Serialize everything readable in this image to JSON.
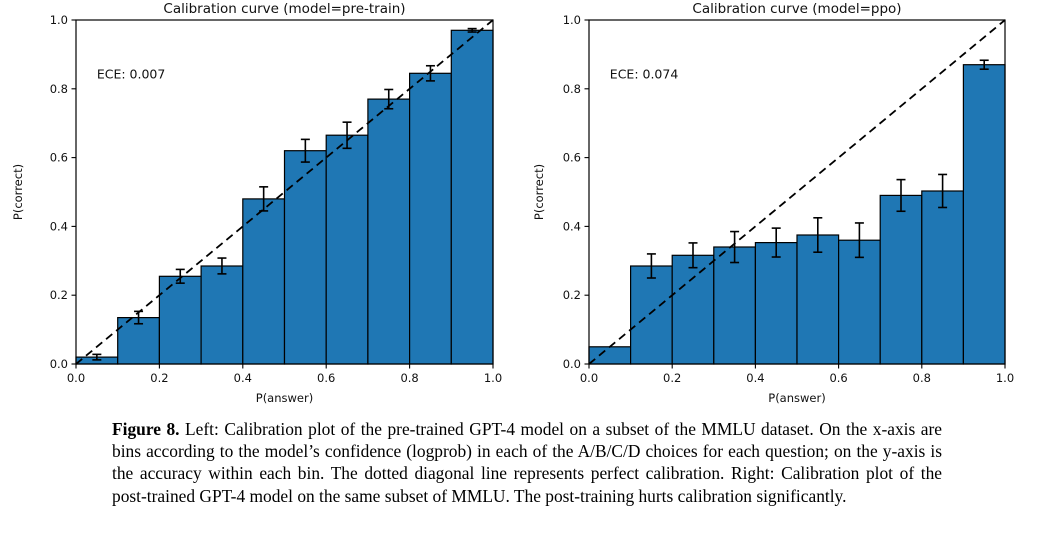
{
  "figure": {
    "caption_label": "Figure 8.",
    "caption_text": "Left: Calibration plot of the pre-trained GPT-4 model on a subset of the MMLU dataset. On the x-axis are bins according to the model’s confidence (logprob) in each of the A/B/C/D choices for each question; on the y-axis is the accuracy within each bin. The dotted diagonal line represents perfect calibration. Right: Calibration plot of the post-trained GPT-4 model on the same subset of MMLU. The post-training hurts calibration significantly."
  },
  "chart_data": [
    {
      "type": "bar",
      "title": "Calibration curve (model=pre-train)",
      "annotation": "ECE: 0.007",
      "xlabel": "P(answer)",
      "ylabel": "P(correct)",
      "xlim": [
        0.0,
        1.0
      ],
      "ylim": [
        0.0,
        1.0
      ],
      "xticks": [
        0.0,
        0.2,
        0.4,
        0.6,
        0.8,
        1.0
      ],
      "yticks": [
        0.0,
        0.2,
        0.4,
        0.6,
        0.8,
        1.0
      ],
      "bin_edges": [
        0.0,
        0.1,
        0.2,
        0.3,
        0.4,
        0.5,
        0.6,
        0.7,
        0.8,
        0.9,
        1.0
      ],
      "values": [
        0.02,
        0.135,
        0.255,
        0.285,
        0.48,
        0.62,
        0.665,
        0.77,
        0.845,
        0.97
      ],
      "errors": [
        0.008,
        0.018,
        0.02,
        0.023,
        0.035,
        0.033,
        0.038,
        0.028,
        0.022,
        0.005
      ],
      "diagonal": "perfect-calibration",
      "grid": false,
      "legend": "none",
      "bar_color": "#1f77b4",
      "edge_color": "#000000",
      "line_color": "#000000"
    },
    {
      "type": "bar",
      "title": "Calibration curve (model=ppo)",
      "annotation": "ECE: 0.074",
      "xlabel": "P(answer)",
      "ylabel": "P(correct)",
      "xlim": [
        0.0,
        1.0
      ],
      "ylim": [
        0.0,
        1.0
      ],
      "xticks": [
        0.0,
        0.2,
        0.4,
        0.6,
        0.8,
        1.0
      ],
      "yticks": [
        0.0,
        0.2,
        0.4,
        0.6,
        0.8,
        1.0
      ],
      "bin_edges": [
        0.0,
        0.1,
        0.2,
        0.3,
        0.4,
        0.5,
        0.6,
        0.7,
        0.8,
        0.9,
        1.0
      ],
      "values": [
        0.05,
        0.285,
        0.316,
        0.34,
        0.353,
        0.375,
        0.36,
        0.49,
        0.503,
        0.87
      ],
      "errors": [
        0,
        0.035,
        0.036,
        0.045,
        0.042,
        0.05,
        0.05,
        0.046,
        0.048,
        0.013
      ],
      "diagonal": "perfect-calibration",
      "grid": false,
      "legend": "none",
      "bar_color": "#1f77b4",
      "edge_color": "#000000",
      "line_color": "#000000"
    }
  ]
}
